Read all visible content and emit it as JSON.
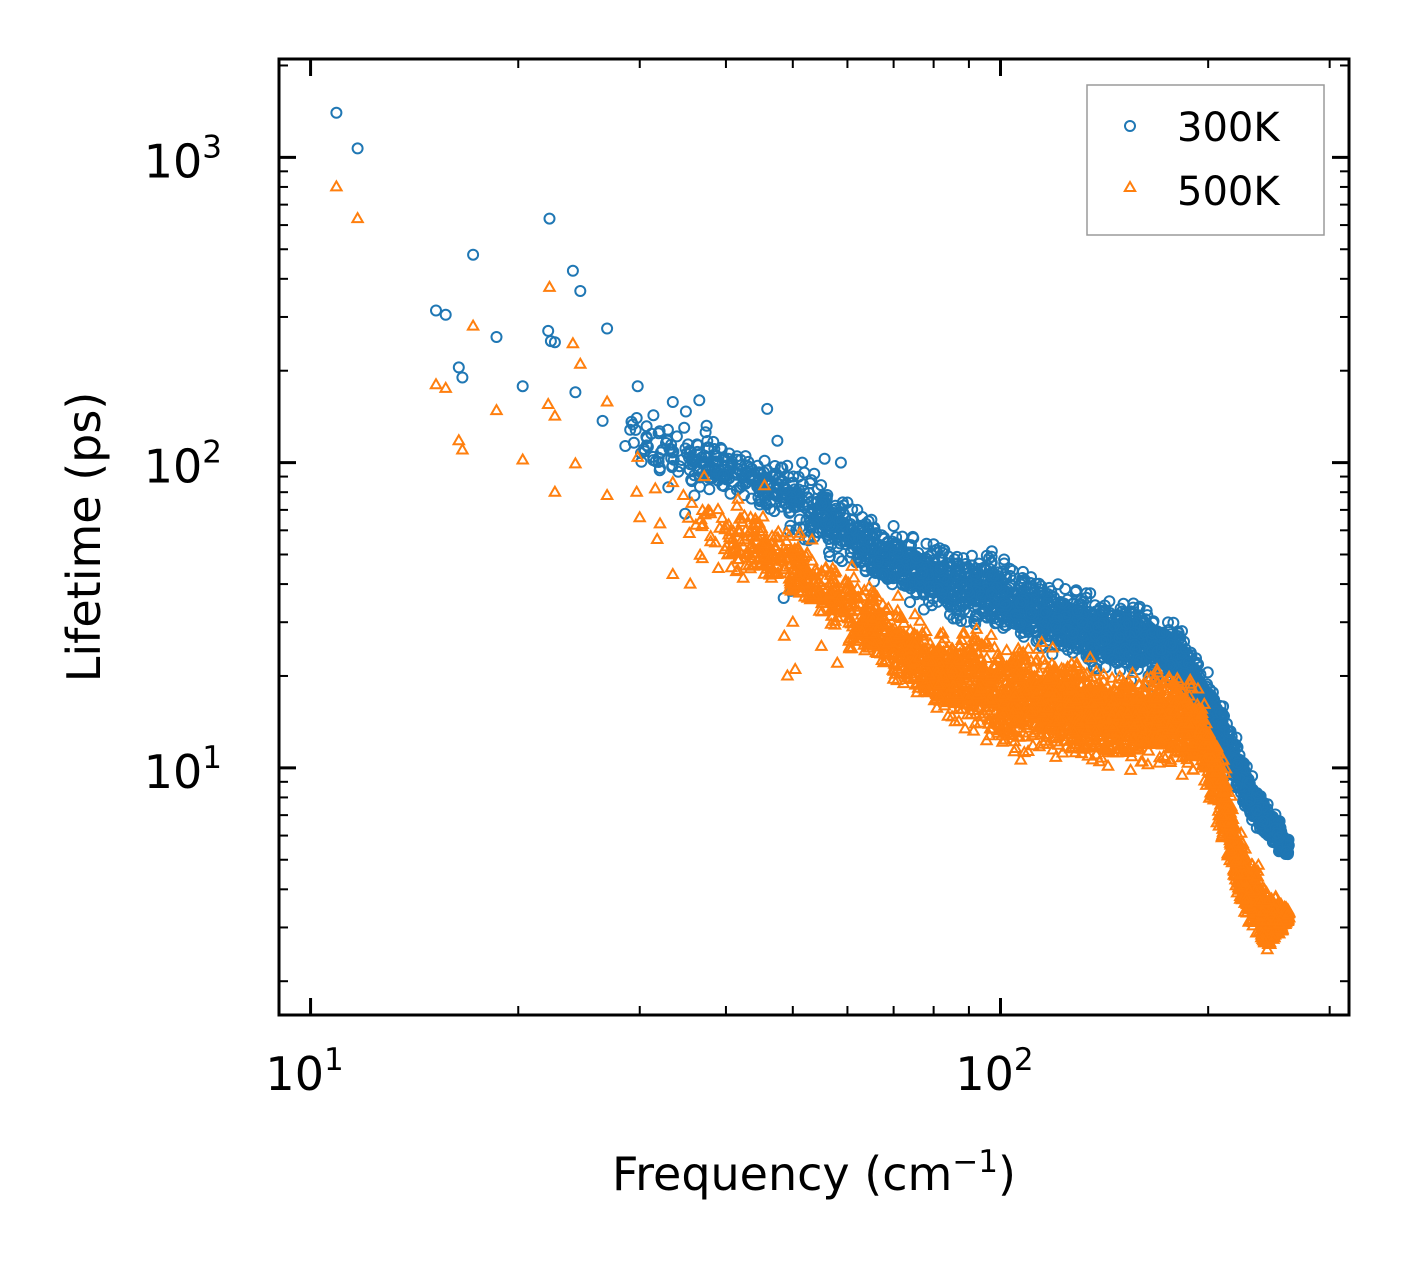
{
  "chart_data": {
    "type": "scatter",
    "xscale": "log",
    "yscale": "log",
    "xlabel": "Frequency (cm",
    "xlabel_sup": "−1",
    "xlabel_end": ")",
    "ylabel": "Lifetime (ps)",
    "xlim": [
      9,
      320
    ],
    "ylim": [
      1.55,
      2100
    ],
    "x_ticks": [
      {
        "value": 10,
        "base": "10",
        "exp": "1"
      },
      {
        "value": 100,
        "base": "10",
        "exp": "2"
      }
    ],
    "y_ticks": [
      {
        "value": 10,
        "base": "10",
        "exp": "1"
      },
      {
        "value": 100,
        "base": "10",
        "exp": "2"
      },
      {
        "value": 1000,
        "base": "10",
        "exp": "3"
      }
    ],
    "legend_position": "top-right",
    "series": [
      {
        "name": "300K",
        "label": "300K",
        "marker": "circle",
        "color": "#1f77b4",
        "points": [
          [
            10.9,
            1400
          ],
          [
            11.7,
            1070
          ],
          [
            22.2,
            630
          ],
          [
            24.0,
            425
          ],
          [
            17.2,
            480
          ],
          [
            15.2,
            315
          ],
          [
            15.7,
            305
          ],
          [
            24.6,
            365
          ],
          [
            18.6,
            258
          ],
          [
            22.1,
            270
          ],
          [
            22.6,
            248
          ],
          [
            22.3,
            250
          ],
          [
            26.9,
            275
          ],
          [
            16.4,
            205
          ],
          [
            16.6,
            190
          ],
          [
            20.3,
            178
          ],
          [
            24.2,
            170
          ],
          [
            29.8,
            178
          ],
          [
            29.7,
            140
          ],
          [
            31.4,
            143
          ],
          [
            33.5,
            158
          ],
          [
            35.0,
            147
          ],
          [
            36.6,
            160
          ],
          [
            29.6,
            128
          ],
          [
            30.5,
            109
          ],
          [
            32.2,
            108
          ],
          [
            34.8,
            130
          ],
          [
            37.5,
            132
          ],
          [
            38.8,
            105
          ],
          [
            42.7,
            105
          ],
          [
            45.9,
            150
          ],
          [
            47.5,
            118
          ],
          [
            48.3,
            96
          ],
          [
            51.6,
            100
          ],
          [
            53.7,
            92
          ],
          [
            55.6,
            103
          ],
          [
            58.7,
            100
          ],
          [
            26.5,
            137
          ],
          [
            32.1,
            96
          ],
          [
            35.7,
            87
          ],
          [
            39.7,
            104
          ],
          [
            41.3,
            93
          ],
          [
            44.5,
            86
          ],
          [
            33.0,
            83
          ],
          [
            36.0,
            78
          ],
          [
            34.9,
            68
          ],
          [
            45.5,
            82
          ],
          [
            56.0,
            76
          ],
          [
            60.0,
            74
          ],
          [
            51.0,
            72
          ],
          [
            62.0,
            70
          ],
          [
            65.0,
            65
          ],
          [
            70.0,
            62
          ],
          [
            48.5,
            36
          ],
          [
            49.7,
            38
          ]
        ],
        "band": {
          "x": [
            28,
            35,
            45,
            55,
            65,
            75,
            85,
            95,
            105,
            120,
            140,
            160,
            180,
            200,
            215,
            230,
            245,
            262
          ],
          "y_upper": [
            160,
            140,
            115,
            95,
            68,
            62,
            55,
            55,
            50,
            42,
            38,
            37,
            32,
            22,
            15,
            10,
            8,
            6
          ],
          "y_lower": [
            95,
            80,
            62,
            48,
            38,
            32,
            28,
            26,
            24,
            22,
            20,
            18,
            17,
            12,
            9,
            6.5,
            5.3,
            4.9
          ]
        }
      },
      {
        "name": "500K",
        "label": "500K",
        "marker": "triangle",
        "color": "#ff7f0e",
        "points": [
          [
            10.9,
            800
          ],
          [
            11.7,
            630
          ],
          [
            22.2,
            375
          ],
          [
            24.0,
            245
          ],
          [
            17.2,
            280
          ],
          [
            15.2,
            180
          ],
          [
            15.7,
            175
          ],
          [
            24.6,
            210
          ],
          [
            16.4,
            118
          ],
          [
            16.6,
            110
          ],
          [
            18.6,
            148
          ],
          [
            22.1,
            155
          ],
          [
            22.6,
            142
          ],
          [
            20.3,
            102
          ],
          [
            24.2,
            99
          ],
          [
            22.6,
            80
          ],
          [
            26.9,
            158
          ],
          [
            26.9,
            78
          ],
          [
            29.8,
            104
          ],
          [
            29.7,
            80
          ],
          [
            30.0,
            66
          ],
          [
            31.6,
            82
          ],
          [
            33.5,
            86
          ],
          [
            32.1,
            63
          ],
          [
            31.8,
            56
          ],
          [
            34.7,
            78
          ],
          [
            37.2,
            90
          ],
          [
            36.8,
            65
          ],
          [
            40.0,
            62
          ],
          [
            42.0,
            55
          ],
          [
            44.5,
            52
          ],
          [
            47.0,
            50
          ],
          [
            33.5,
            43
          ],
          [
            35.5,
            40
          ],
          [
            39.0,
            45
          ],
          [
            48.6,
            27
          ],
          [
            50.0,
            30
          ],
          [
            50.4,
            21
          ],
          [
            49.1,
            20
          ],
          [
            55.0,
            25
          ],
          [
            58.0,
            22
          ],
          [
            38.0,
            68
          ],
          [
            41.5,
            72
          ],
          [
            45.5,
            84
          ]
        ],
        "band": {
          "x": [
            35,
            45,
            55,
            62,
            70,
            80,
            90,
            100,
            115,
            130,
            145,
            160,
            175,
            190,
            200,
            210,
            220,
            232,
            245,
            262
          ],
          "y_upper": [
            90,
            75,
            55,
            48,
            38,
            30,
            32,
            30,
            27,
            24,
            22,
            22,
            24,
            20,
            17,
            12,
            7,
            5.5,
            4.2,
            3.5
          ],
          "y_lower": [
            45,
            38,
            28,
            21,
            17,
            14,
            11.5,
            10,
            10.5,
            10,
            9.5,
            9.5,
            9.5,
            9,
            7.5,
            5.2,
            3.5,
            2.6,
            2.3,
            3.1
          ]
        }
      }
    ]
  }
}
